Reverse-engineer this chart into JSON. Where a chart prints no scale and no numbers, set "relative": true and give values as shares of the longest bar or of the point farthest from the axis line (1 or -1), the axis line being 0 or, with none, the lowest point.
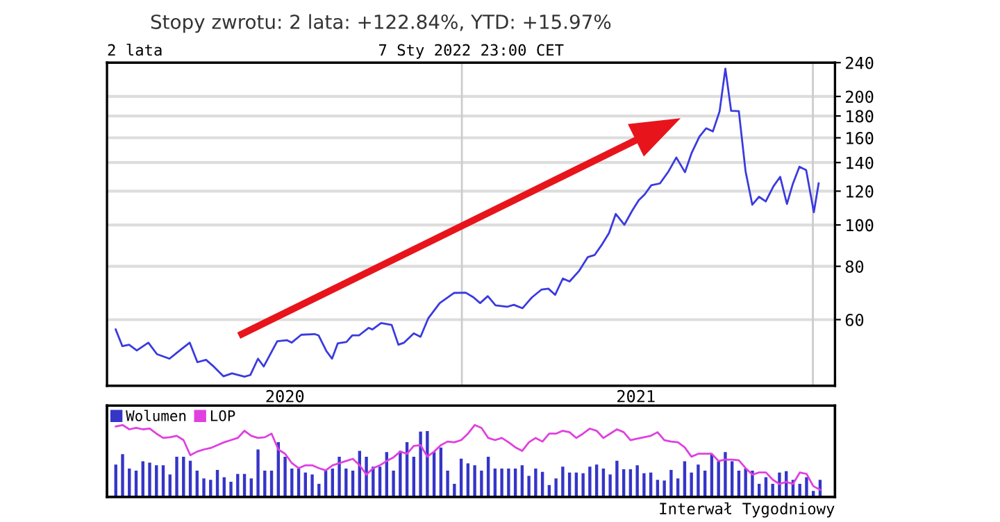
{
  "chart_data": [
    {
      "type": "line",
      "title": "Stopy zwrotu: 2 lata: +122.84%, YTD: +15.97%",
      "subtitle": "2 lata",
      "annotations": [
        "7 Sty 2022 23:00 CET"
      ],
      "x": [
        "2020-01-07",
        "2020-01-14",
        "2020-01-21",
        "2020-01-29",
        "2020-02-10",
        "2020-02-19",
        "2020-03-03",
        "2020-03-15",
        "2020-03-24",
        "2020-04-01",
        "2020-04-10",
        "2020-04-17",
        "2020-04-28",
        "2020-05-07",
        "2020-05-20",
        "2020-05-26",
        "2020-06-03",
        "2020-06-09",
        "2020-06-23",
        "2020-07-03",
        "2020-07-08",
        "2020-07-18",
        "2020-08-01",
        "2020-08-05",
        "2020-08-13",
        "2020-08-19",
        "2020-08-25",
        "2020-09-03",
        "2020-09-09",
        "2020-09-16",
        "2020-09-26",
        "2020-09-30",
        "2020-10-09",
        "2020-10-20",
        "2020-10-27",
        "2020-11-02",
        "2020-11-12",
        "2020-11-19",
        "2020-11-27",
        "2020-12-09",
        "2020-12-24",
        "2021-01-05",
        "2021-01-13",
        "2021-01-20",
        "2021-01-28",
        "2021-02-05",
        "2021-02-17",
        "2021-02-24",
        "2021-03-05",
        "2021-03-15",
        "2021-03-25",
        "2021-04-01",
        "2021-04-08",
        "2021-04-16",
        "2021-04-23",
        "2021-05-03",
        "2021-05-12",
        "2021-05-19",
        "2021-05-26",
        "2021-06-03",
        "2021-06-10",
        "2021-06-19",
        "2021-06-27",
        "2021-07-04",
        "2021-07-10",
        "2021-07-17",
        "2021-07-26",
        "2021-08-04",
        "2021-08-12",
        "2021-08-21",
        "2021-08-28",
        "2021-09-05",
        "2021-09-12",
        "2021-09-19",
        "2021-09-26",
        "2021-10-02",
        "2021-10-08",
        "2021-10-16",
        "2021-10-23",
        "2021-10-30",
        "2021-11-06",
        "2021-11-13",
        "2021-11-21",
        "2021-11-28",
        "2021-12-05",
        "2021-12-11",
        "2021-12-18",
        "2021-12-25",
        "2022-01-02",
        "2022-01-07"
      ],
      "series": [
        {
          "color": "#3a3ae0",
          "values": [
            56.9,
            52.0,
            52.4,
            50.8,
            53.0,
            49.8,
            48.6,
            51.1,
            53.0,
            47.7,
            48.3,
            46.8,
            44.2,
            44.9,
            44.1,
            44.5,
            48.6,
            46.6,
            53.4,
            53.7,
            53.0,
            55.3,
            55.5,
            55.1,
            50.7,
            48.6,
            52.8,
            53.2,
            55.1,
            55.1,
            57.4,
            56.9,
            58.9,
            58.3,
            52.4,
            53.0,
            55.7,
            54.7,
            60.4,
            65.6,
            69.3,
            69.4,
            67.7,
            65.6,
            68.1,
            64.8,
            64.3,
            65.0,
            63.8,
            67.7,
            70.6,
            70.9,
            68.6,
            74.9,
            73.7,
            78.1,
            84.1,
            85.0,
            89.5,
            95.7,
            106.1,
            100.1,
            107.9,
            114.3,
            117.8,
            123.9,
            125.1,
            133.6,
            143.9,
            132.9,
            147.6,
            161.0,
            168.4,
            165.6,
            184.6,
            232.4,
            185.1,
            184.8,
            133.6,
            111.5,
            116.4,
            113.5,
            123.2,
            129.6,
            112.0,
            124.5,
            136.9,
            134.5,
            107.1,
            125.2
          ]
        }
      ],
      "log": "y",
      "ylim": [
        42,
        240
      ],
      "yticks": [
        60,
        80,
        100,
        120,
        140,
        160,
        180,
        200,
        240
      ],
      "xlim": [
        "2019-12-29",
        "2022-01-24"
      ],
      "xticks": [
        {
          "value": "2020-07-01",
          "label": "2020"
        },
        {
          "value": "2021-01-01",
          "label": null
        },
        {
          "value": "2021-07-01",
          "label": "2021"
        },
        {
          "value": "2022-01-01",
          "label": null
        }
      ],
      "grid": true
    },
    {
      "type": "bar",
      "relative": true,
      "legend": "top left",
      "annotations": [
        "Interwał Tygodniowy"
      ],
      "categories": [
        null,
        null,
        null,
        null,
        null,
        null,
        null,
        null,
        null,
        null,
        null,
        null,
        null,
        null,
        null,
        null,
        null,
        null,
        null,
        null,
        null,
        null,
        null,
        null,
        null,
        null,
        null,
        null,
        null,
        null,
        null,
        null,
        null,
        null,
        null,
        null,
        null,
        null,
        null,
        null,
        null,
        null,
        null,
        null,
        null,
        null,
        null,
        null,
        null,
        null,
        null,
        null,
        null,
        null,
        null,
        null,
        null,
        null,
        null,
        null,
        null,
        null,
        null,
        null,
        null,
        null,
        null,
        null,
        null,
        null,
        null,
        null,
        null,
        null,
        null,
        null,
        null,
        null,
        null,
        null,
        null,
        null,
        null,
        null,
        null,
        null,
        null,
        null,
        null,
        null,
        null,
        null,
        null,
        null,
        null,
        null,
        null,
        null,
        null,
        null,
        null,
        null,
        null,
        null,
        null
      ],
      "series": [
        {
          "name": "Wolumen",
          "color": "#3535c8",
          "values": [
            0.49,
            0.65,
            0.43,
            0.4,
            0.54,
            0.52,
            0.48,
            0.48,
            0.34,
            0.61,
            0.61,
            0.55,
            0.4,
            0.28,
            0.26,
            0.41,
            0.3,
            0.23,
            0.35,
            0.35,
            0.28,
            0.72,
            0.4,
            0.4,
            0.83,
            0.61,
            0.43,
            0.43,
            0.37,
            0.34,
            0.2,
            0.4,
            0.43,
            0.61,
            0.43,
            0.4,
            0.7,
            0.61,
            0.46,
            0.46,
            0.68,
            0.4,
            0.7,
            0.83,
            0.61,
            0.99,
            1.0,
            0.68,
            0.75,
            0.4,
            0.2,
            0.58,
            0.51,
            0.48,
            0.4,
            0.61,
            0.43,
            0.43,
            0.43,
            0.43,
            0.48,
            0.32,
            0.43,
            0.38,
            0.18,
            0.28,
            0.46,
            0.37,
            0.37,
            0.36,
            0.46,
            0.49,
            0.43,
            0.34,
            0.55,
            0.42,
            0.42,
            0.48,
            0.36,
            0.37,
            0.26,
            0.25,
            0.41,
            0.28,
            0.54,
            0.37,
            0.49,
            0.4,
            0.65,
            0.54,
            0.68,
            0.54,
            0.4,
            0.43,
            0.4,
            0.2,
            0.3,
            0.2,
            0.37,
            0.39,
            0.26,
            0.2,
            0.3,
            0.09,
            0.26
          ]
        }
      ]
    },
    {
      "type": "line",
      "relative": true,
      "legend": "top left",
      "categories": [
        null,
        null,
        null,
        null,
        null,
        null,
        null,
        null,
        null,
        null,
        null,
        null,
        null,
        null,
        null,
        null,
        null,
        null,
        null,
        null,
        null,
        null,
        null,
        null,
        null,
        null,
        null,
        null,
        null,
        null,
        null,
        null,
        null,
        null,
        null,
        null,
        null,
        null,
        null,
        null,
        null,
        null,
        null,
        null,
        null,
        null,
        null,
        null,
        null,
        null,
        null,
        null,
        null,
        null,
        null,
        null,
        null,
        null,
        null,
        null,
        null,
        null,
        null,
        null,
        null,
        null,
        null,
        null,
        null,
        null,
        null,
        null,
        null,
        null,
        null,
        null,
        null,
        null,
        null,
        null,
        null,
        null,
        null,
        null,
        null,
        null,
        null,
        null,
        null,
        null,
        null,
        null,
        null,
        null,
        null,
        null,
        null,
        null,
        null,
        null,
        null,
        null,
        null,
        null,
        null
      ],
      "series": [
        {
          "name": "LOP",
          "color": "#e040e0",
          "values": [
            0.98,
            1.0,
            0.94,
            0.96,
            0.94,
            0.95,
            0.88,
            0.82,
            0.83,
            0.85,
            0.79,
            0.58,
            0.63,
            0.66,
            0.68,
            0.72,
            0.76,
            0.79,
            0.82,
            0.92,
            0.85,
            0.82,
            0.83,
            0.88,
            0.66,
            0.6,
            0.47,
            0.4,
            0.44,
            0.44,
            0.4,
            0.37,
            0.44,
            0.47,
            0.5,
            0.53,
            0.44,
            0.31,
            0.4,
            0.44,
            0.5,
            0.55,
            0.63,
            0.6,
            0.71,
            0.72,
            0.56,
            0.63,
            0.72,
            0.77,
            0.76,
            0.79,
            0.88,
            1.0,
            0.96,
            0.82,
            0.79,
            0.82,
            0.76,
            0.69,
            0.64,
            0.76,
            0.82,
            0.77,
            0.88,
            0.88,
            0.92,
            0.9,
            0.82,
            0.88,
            0.95,
            0.92,
            0.82,
            0.88,
            0.94,
            0.9,
            0.79,
            0.81,
            0.83,
            0.85,
            0.9,
            0.79,
            0.77,
            0.76,
            0.69,
            0.56,
            0.6,
            0.6,
            0.6,
            0.5,
            0.52,
            0.52,
            0.51,
            0.4,
            0.31,
            0.34,
            0.34,
            0.24,
            0.18,
            0.21,
            0.18,
            0.34,
            0.32,
            0.15,
            0.1
          ]
        }
      ]
    }
  ]
}
